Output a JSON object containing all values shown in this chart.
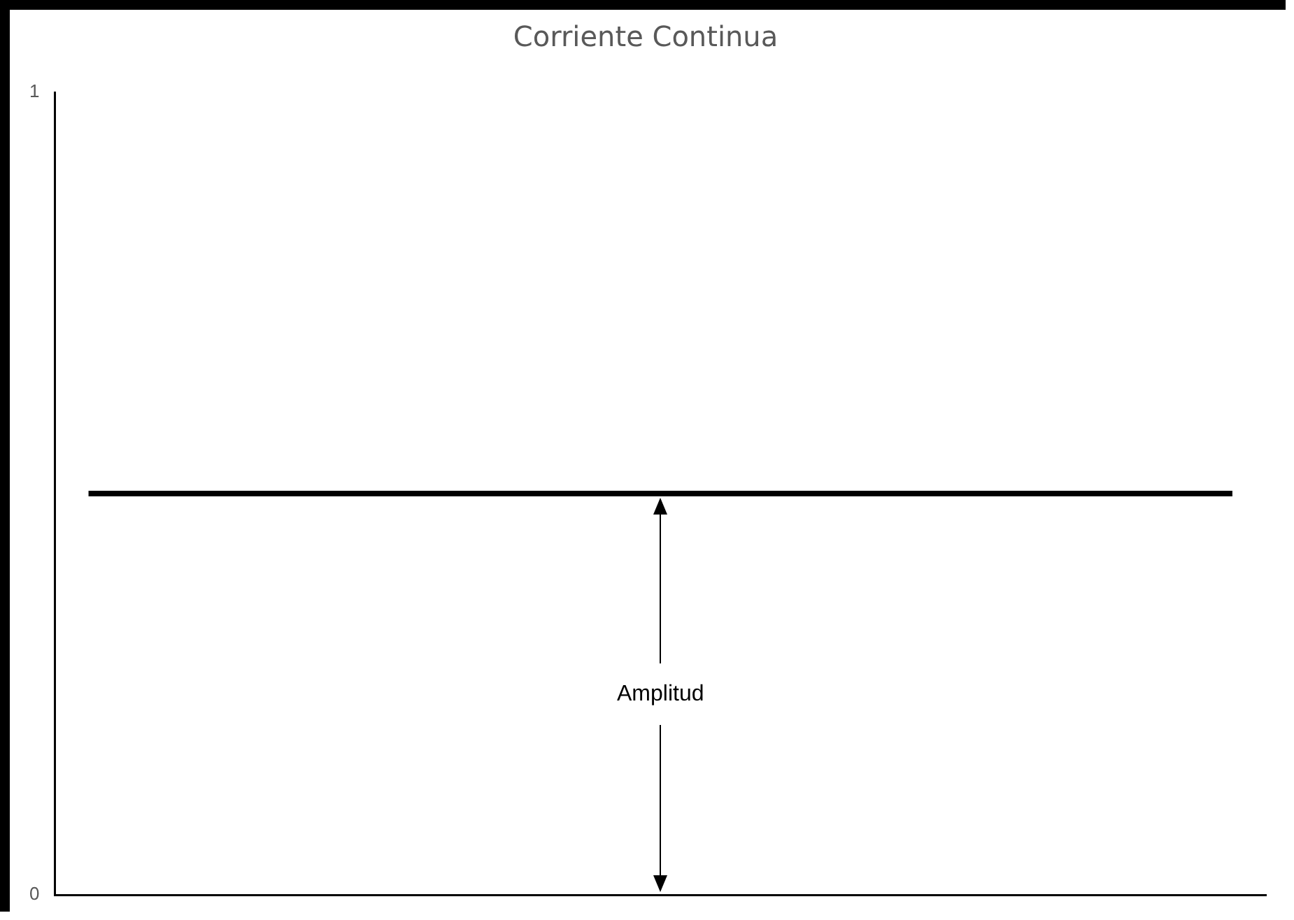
{
  "chart_data": {
    "type": "line",
    "title": "Corriente Continua",
    "categories": [
      null,
      null,
      null,
      null,
      null,
      null,
      null,
      null,
      null,
      null,
      null,
      null,
      null,
      null,
      null,
      null,
      null,
      null
    ],
    "series": [
      {
        "color": "#000000",
        "values": [
          0.5,
          0.5,
          0.5,
          0.5,
          0.5,
          0.5,
          0.5,
          0.5,
          0.5,
          0.5,
          0.5,
          0.5,
          0.5,
          0.5,
          0.5,
          0.5,
          0.5,
          0.5
        ]
      }
    ],
    "ylim": [
      0,
      1
    ],
    "yticks": [
      0,
      1
    ],
    "grid": false,
    "legend": false,
    "marker": "none",
    "line_style": "solid",
    "tick_labels": "y",
    "annotations": [
      "Amplitud"
    ]
  }
}
